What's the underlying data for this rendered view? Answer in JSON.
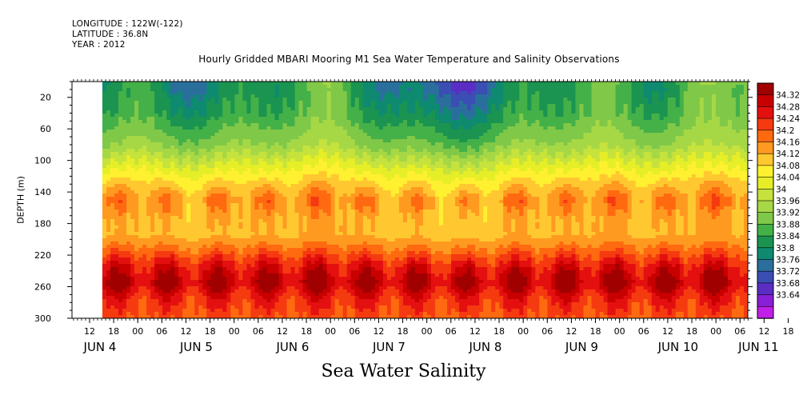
{
  "header": {
    "longitude": "LONGITUDE : 122W(-122)",
    "latitude": "LATITUDE : 36.8N",
    "year": "YEAR : 2012"
  },
  "chart_data": {
    "type": "heatmap",
    "title": "Hourly Gridded MBARI Mooring M1 Sea Water Temperature and Salinity Observations",
    "subtitle": "Sea Water Salinity",
    "ylabel": "DEPTH (m)",
    "ylim": [
      300,
      0
    ],
    "y_ticks": [
      20,
      60,
      100,
      140,
      180,
      220,
      260,
      300
    ],
    "x_hour_ticks": [
      "12",
      "18",
      "00",
      "06",
      "12",
      "18",
      "00",
      "06",
      "12",
      "18",
      "00",
      "06",
      "12",
      "18",
      "00",
      "06",
      "12",
      "18",
      "00",
      "06",
      "12",
      "18",
      "00",
      "06",
      "12",
      "18",
      "00",
      "06",
      "12",
      "18",
      "00",
      "06"
    ],
    "x_day_labels": [
      "JUN  4",
      "JUN  5",
      "JUN  6",
      "JUN  7",
      "JUN  8",
      "JUN  9",
      "JUN 10",
      "JUN 11"
    ],
    "data_start_hour_offset": 17,
    "colorbar": {
      "labels": [
        "34.32",
        "34.28",
        "34.24",
        "34.2",
        "34.16",
        "34.12",
        "34.08",
        "34.04",
        "34",
        "33.96",
        "33.92",
        "33.88",
        "33.84",
        "33.8",
        "33.76",
        "33.72",
        "33.68",
        "33.64"
      ],
      "colors": [
        "#a00000",
        "#c80000",
        "#e41010",
        "#f53a10",
        "#ff6a10",
        "#ff9a20",
        "#ffc830",
        "#fff030",
        "#e6ee28",
        "#c6e23c",
        "#a6d846",
        "#80c848",
        "#44b048",
        "#1a9450",
        "#0e8a70",
        "#2a6f9c",
        "#3a4eb4",
        "#5a2ec4",
        "#8a20d6",
        "#c020e8"
      ]
    },
    "depth_profile": {
      "depths": [
        10,
        40,
        80,
        110,
        130,
        150,
        175,
        195,
        215,
        235,
        255,
        275,
        300
      ],
      "salinity": [
        33.84,
        33.87,
        33.94,
        34.03,
        34.09,
        34.14,
        34.11,
        34.11,
        34.17,
        34.24,
        34.28,
        34.22,
        34.18
      ]
    },
    "grid": false
  }
}
